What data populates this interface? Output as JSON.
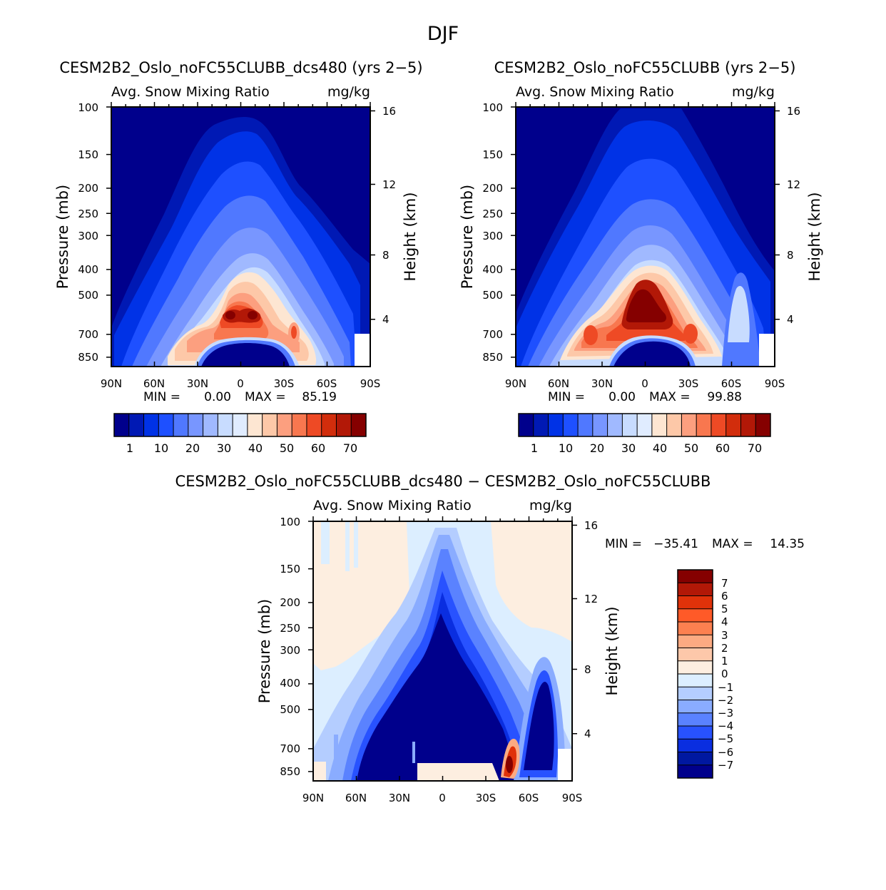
{
  "figure": {
    "season": "DJF"
  },
  "chart_data": [
    {
      "type": "contour",
      "title": "CESM2B2_Oslo_noFC55CLUBB_dcs480 (yrs 2−5)",
      "variable": "Avg. Snow Mixing Ratio",
      "units": "mg/kg",
      "xlabel": "",
      "ylabel": "Pressure (mb)",
      "ylabel_right": "Height (km)",
      "x_ticks": [
        "90N",
        "60N",
        "30N",
        "0",
        "30S",
        "60S",
        "90S"
      ],
      "y_ticks": [
        "100",
        "150",
        "200",
        "250",
        "300",
        "400",
        "500",
        "700",
        "850"
      ],
      "y_right_ticks": [
        "16",
        "12",
        "8",
        "4"
      ],
      "min_label": "MIN =",
      "min_value": "0.00",
      "max_label": "MAX =",
      "max_value": "85.19",
      "colorbar_labels": [
        "1",
        "10",
        "20",
        "30",
        "40",
        "50",
        "60",
        "70"
      ]
    },
    {
      "type": "contour",
      "title": "CESM2B2_Oslo_noFC55CLUBB (yrs 2−5)",
      "variable": "Avg. Snow Mixing Ratio",
      "units": "mg/kg",
      "xlabel": "",
      "ylabel": "Pressure (mb)",
      "ylabel_right": "Height (km)",
      "x_ticks": [
        "90N",
        "60N",
        "30N",
        "0",
        "30S",
        "60S",
        "90S"
      ],
      "y_ticks": [
        "100",
        "150",
        "200",
        "250",
        "300",
        "400",
        "500",
        "700",
        "850"
      ],
      "y_right_ticks": [
        "16",
        "12",
        "8",
        "4"
      ],
      "min_label": "MIN =",
      "min_value": "0.00",
      "max_label": "MAX =",
      "max_value": "99.88",
      "colorbar_labels": [
        "1",
        "10",
        "20",
        "30",
        "40",
        "50",
        "60",
        "70"
      ]
    },
    {
      "type": "contour",
      "title": "CESM2B2_Oslo_noFC55CLUBB_dcs480 − CESM2B2_Oslo_noFC55CLUBB",
      "variable": "Avg. Snow Mixing Ratio",
      "units": "mg/kg",
      "xlabel": "",
      "ylabel": "Pressure (mb)",
      "ylabel_right": "Height (km)",
      "x_ticks": [
        "90N",
        "60N",
        "30N",
        "0",
        "30S",
        "60S",
        "90S"
      ],
      "y_ticks": [
        "100",
        "150",
        "200",
        "250",
        "300",
        "400",
        "500",
        "700",
        "850"
      ],
      "y_right_ticks": [
        "16",
        "12",
        "8",
        "4"
      ],
      "min_label": "MIN =",
      "min_value": "−35.41",
      "max_label": "MAX =",
      "max_value": "14.35",
      "colorbar_labels": [
        "7",
        "6",
        "5",
        "4",
        "3",
        "2",
        "1",
        "0",
        "−1",
        "−2",
        "−3",
        "−4",
        "−5",
        "−6",
        "−7"
      ]
    }
  ],
  "colors": {
    "abs_scale": [
      "#00008c",
      "#0019b4",
      "#0032e6",
      "#1e50ff",
      "#5078ff",
      "#7896ff",
      "#a0b9ff",
      "#c8dcff",
      "#e0ecff",
      "#fde6d2",
      "#fdc8a8",
      "#fc9f7f",
      "#f8774f",
      "#ee4a25",
      "#d22d0c",
      "#b21807",
      "#850000"
    ],
    "diff_scale": [
      "#850000",
      "#b21807",
      "#e0320a",
      "#ff5a28",
      "#fc8050",
      "#fcaa82",
      "#fdc8aa",
      "#fdeee0",
      "#dceeff",
      "#b4cdff",
      "#8aacff",
      "#5a82ff",
      "#2852ff",
      "#0a2ee0",
      "#0018a0",
      "#00008c"
    ]
  }
}
